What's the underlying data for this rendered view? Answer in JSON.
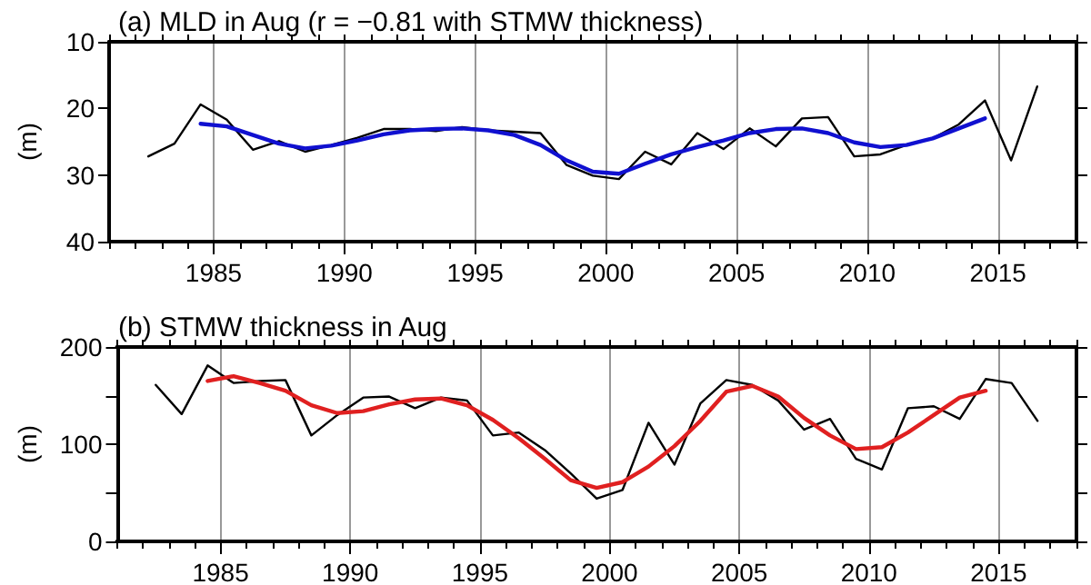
{
  "chart_data": [
    {
      "type": "line",
      "title": "(a) MLD in Aug (r = −0.81 with STMW thickness)",
      "ylabel": "(m)",
      "xlim": [
        1981,
        2018
      ],
      "xticks": [
        1985,
        1990,
        1995,
        2000,
        2005,
        2010,
        2015
      ],
      "ylim": [
        40,
        10
      ],
      "yticks": [
        10,
        20,
        30,
        40
      ],
      "grid": "x",
      "marker": "none",
      "series": [
        {
          "color": "#000000",
          "x": [
            1982.5,
            1983.5,
            1984.5,
            1985.5,
            1986.5,
            1987.5,
            1988.5,
            1989.5,
            1990.5,
            1991.5,
            1992.5,
            1993.5,
            1994.5,
            1995.5,
            1996.5,
            1997.5,
            1998.5,
            1999.5,
            2000.5,
            2001.5,
            2002.5,
            2003.5,
            2004.5,
            2005.5,
            2006.5,
            2007.5,
            2008.5,
            2009.5,
            2010.5,
            2011.5,
            2012.5,
            2013.5,
            2014.5,
            2015.5,
            2016.5
          ],
          "values": [
            27.2,
            25.3,
            19.4,
            21.7,
            26.2,
            24.9,
            26.5,
            25.5,
            24.4,
            23.1,
            23.1,
            23.4,
            22.8,
            23.3,
            23.5,
            23.7,
            28.5,
            30.1,
            30.6,
            26.5,
            28.4,
            23.7,
            26.1,
            23.0,
            25.7,
            21.5,
            21.3,
            27.2,
            26.9,
            25.5,
            24.5,
            22.4,
            18.8,
            27.8,
            16.7
          ]
        },
        {
          "color": "#1010d0",
          "x": [
            1984.5,
            1985.5,
            1986.5,
            1987.5,
            1988.5,
            1989.5,
            1990.5,
            1991.5,
            1992.5,
            1993.5,
            1994.5,
            1995.5,
            1996.5,
            1997.5,
            1998.5,
            1999.5,
            2000.5,
            2001.5,
            2002.5,
            2003.5,
            2004.5,
            2005.5,
            2006.5,
            2007.5,
            2008.5,
            2009.5,
            2010.5,
            2011.5,
            2012.5,
            2013.5,
            2014.5
          ],
          "values": [
            22.3,
            22.7,
            24.0,
            25.3,
            26.0,
            25.6,
            24.8,
            23.9,
            23.3,
            23.1,
            23.0,
            23.3,
            24.0,
            25.5,
            27.8,
            29.5,
            29.8,
            28.3,
            26.9,
            25.8,
            24.8,
            23.7,
            23.1,
            23.0,
            23.7,
            25.1,
            25.8,
            25.5,
            24.5,
            23.0,
            21.5
          ]
        }
      ]
    },
    {
      "type": "line",
      "title": "(b) STMW thickness in Aug",
      "ylabel": "(m)",
      "xlim": [
        1981,
        2018
      ],
      "xticks": [
        1985,
        1990,
        1995,
        2000,
        2005,
        2010,
        2015
      ],
      "ylim": [
        0,
        200
      ],
      "yticks": [
        0,
        {
          "value": 50,
          "label": null
        },
        100,
        {
          "value": 150,
          "label": null
        },
        200
      ],
      "grid": "x",
      "marker": "none",
      "series": [
        {
          "color": "#000000",
          "x": [
            1982.5,
            1983.5,
            1984.5,
            1985.5,
            1986.5,
            1987.5,
            1988.5,
            1989.5,
            1990.5,
            1991.5,
            1992.5,
            1993.5,
            1994.5,
            1995.5,
            1996.5,
            1997.5,
            1998.5,
            1999.5,
            2000.5,
            2001.5,
            2002.5,
            2003.5,
            2004.5,
            2005.5,
            2006.5,
            2007.5,
            2008.5,
            2009.5,
            2010.5,
            2011.5,
            2012.5,
            2013.5,
            2014.5,
            2015.5,
            2016.5
          ],
          "values": [
            161,
            131,
            181,
            163,
            165,
            166,
            109,
            130,
            148,
            149,
            137,
            148,
            145,
            109,
            112,
            94,
            70,
            44,
            53,
            122,
            79,
            142,
            166,
            161,
            145,
            115,
            126,
            85,
            74,
            137,
            139,
            126,
            167,
            163,
            124
          ]
        },
        {
          "color": "#e02020",
          "x": [
            1984.5,
            1985.5,
            1986.5,
            1987.5,
            1988.5,
            1989.5,
            1990.5,
            1991.5,
            1992.5,
            1993.5,
            1994.5,
            1995.5,
            1996.5,
            1997.5,
            1998.5,
            1999.5,
            2000.5,
            2001.5,
            2002.5,
            2003.5,
            2004.5,
            2005.5,
            2006.5,
            2007.5,
            2008.5,
            2009.5,
            2010.5,
            2011.5,
            2012.5,
            2013.5,
            2014.5
          ],
          "values": [
            165,
            170,
            163,
            155,
            140,
            132,
            134,
            141,
            146,
            147,
            140,
            125,
            106,
            85,
            63,
            55,
            61,
            77,
            98,
            124,
            154,
            160,
            149,
            127,
            109,
            95,
            97,
            112,
            130,
            148,
            155
          ]
        }
      ]
    }
  ]
}
